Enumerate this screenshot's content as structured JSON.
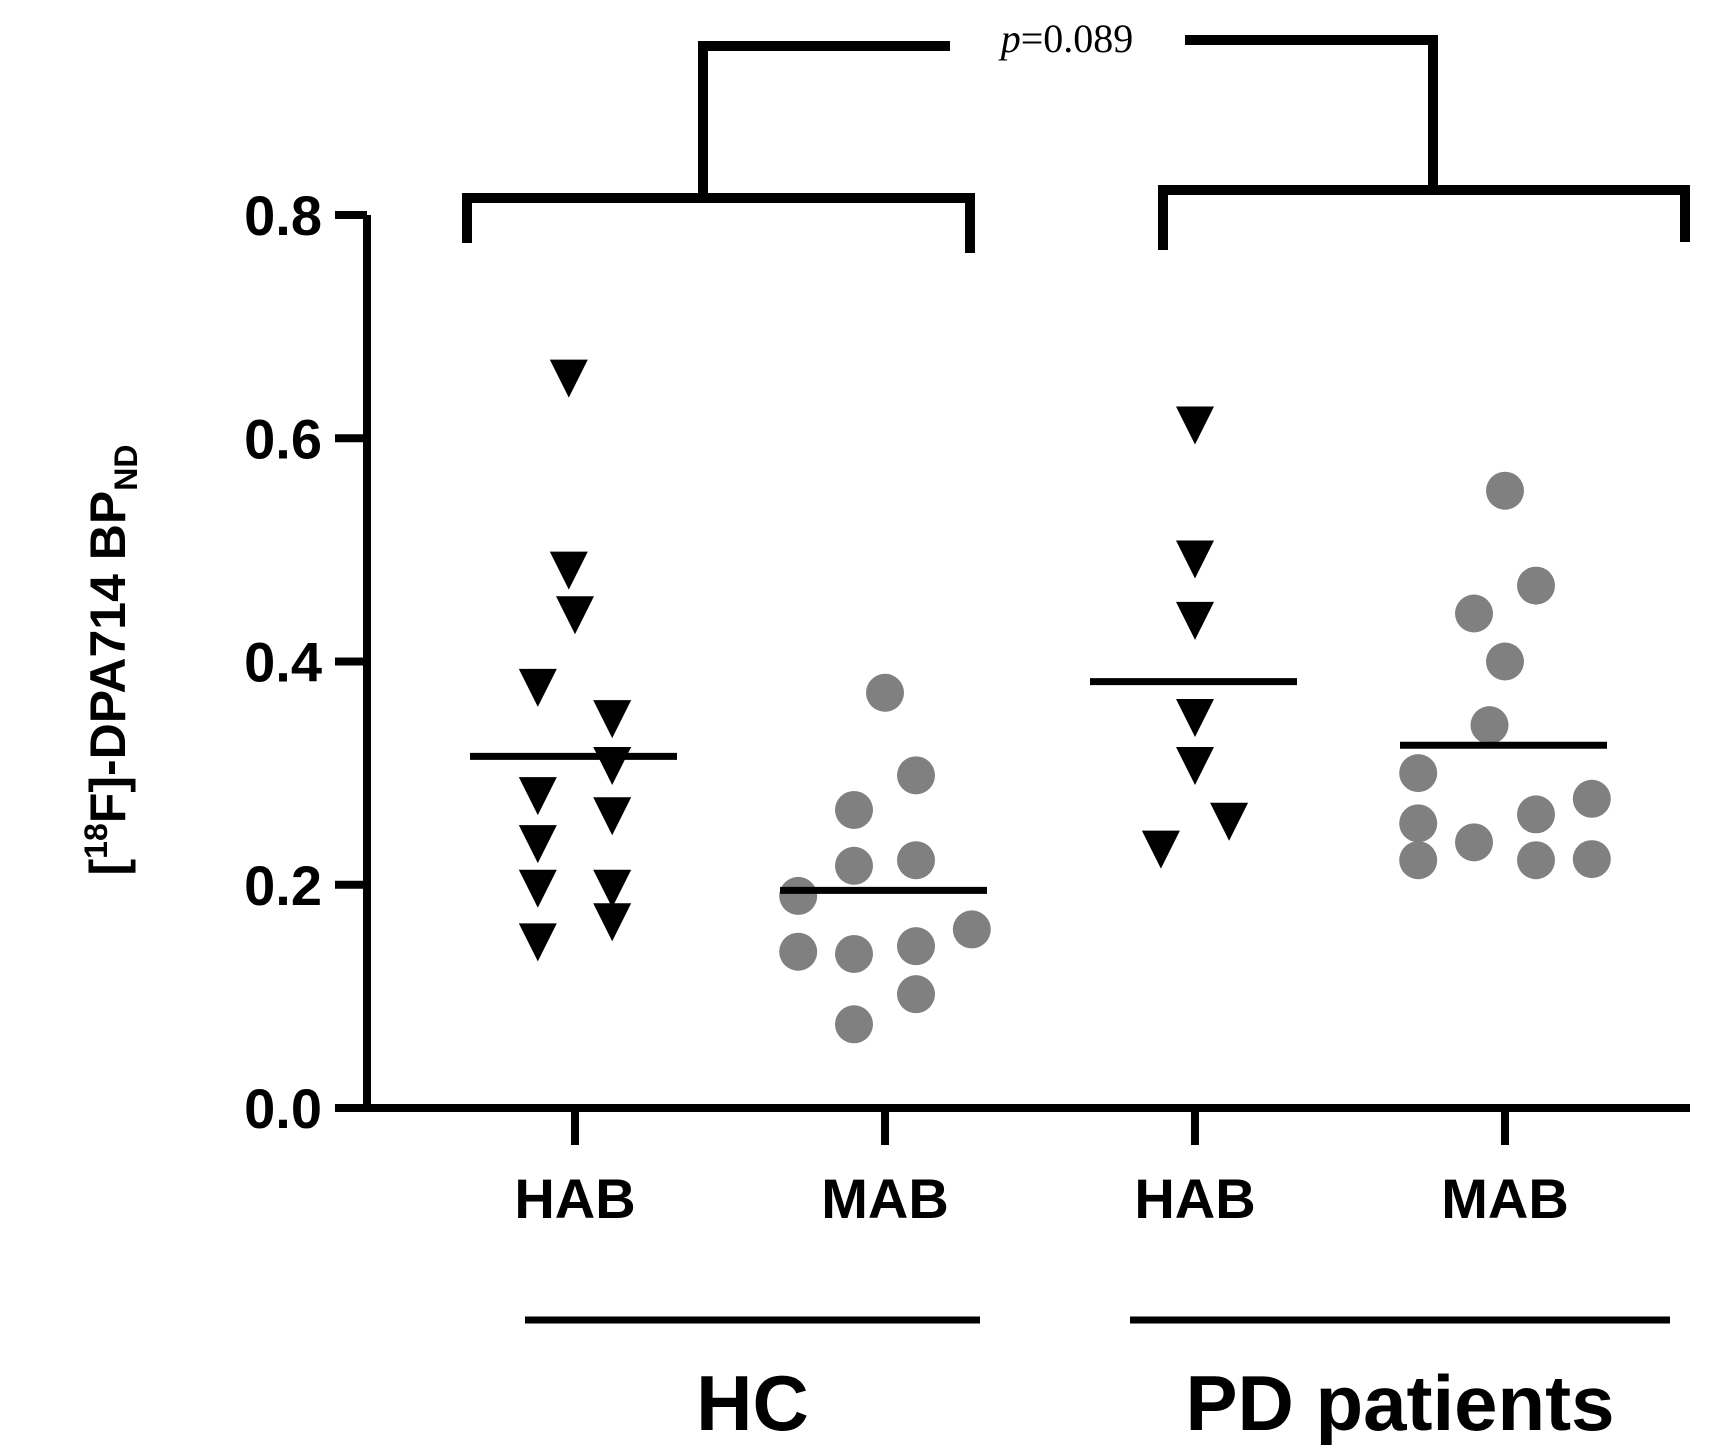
{
  "chart_data": {
    "type": "scatter",
    "ylabel": {
      "pre_sup": "[",
      "sup": "18",
      "main": "F]-DPA714 BP",
      "sub": "ND"
    },
    "ylim": [
      0,
      0.8
    ],
    "yticks": [
      "0.0",
      "0.2",
      "0.4",
      "0.6",
      "0.8"
    ],
    "categories": [
      "HAB",
      "MAB",
      "HAB",
      "MAB"
    ],
    "groups": [
      {
        "label": "HC",
        "categories": [
          0,
          1
        ]
      },
      {
        "label": "PD patients",
        "categories": [
          2,
          3
        ]
      }
    ],
    "annotation": {
      "p_italic": "p",
      "p_rest": "=0.089"
    },
    "series": [
      {
        "category": 0,
        "marker": "triangle-down",
        "color": "#000000",
        "mean": 0.315,
        "points": [
          {
            "x": -0.02,
            "y": 0.657
          },
          {
            "x": -0.02,
            "y": 0.485
          },
          {
            "x": 0.0,
            "y": 0.445
          },
          {
            "x": -0.12,
            "y": 0.38
          },
          {
            "x": 0.12,
            "y": 0.352
          },
          {
            "x": 0.12,
            "y": 0.31
          },
          {
            "x": -0.12,
            "y": 0.283
          },
          {
            "x": 0.12,
            "y": 0.265
          },
          {
            "x": -0.12,
            "y": 0.24
          },
          {
            "x": -0.12,
            "y": 0.2
          },
          {
            "x": 0.12,
            "y": 0.2
          },
          {
            "x": 0.12,
            "y": 0.17
          },
          {
            "x": -0.12,
            "y": 0.152
          }
        ]
      },
      {
        "category": 1,
        "marker": "circle",
        "color": "#808080",
        "mean": 0.195,
        "points": [
          {
            "x": 0.0,
            "y": 0.372
          },
          {
            "x": 0.1,
            "y": 0.298
          },
          {
            "x": -0.1,
            "y": 0.267
          },
          {
            "x": 0.1,
            "y": 0.222
          },
          {
            "x": -0.1,
            "y": 0.217
          },
          {
            "x": -0.28,
            "y": 0.19
          },
          {
            "x": 0.28,
            "y": 0.16
          },
          {
            "x": 0.1,
            "y": 0.145
          },
          {
            "x": -0.28,
            "y": 0.14
          },
          {
            "x": -0.1,
            "y": 0.138
          },
          {
            "x": 0.1,
            "y": 0.102
          },
          {
            "x": -0.1,
            "y": 0.075
          }
        ]
      },
      {
        "category": 2,
        "marker": "triangle-down",
        "color": "#000000",
        "mean": 0.382,
        "points": [
          {
            "x": 0.0,
            "y": 0.615
          },
          {
            "x": 0.0,
            "y": 0.495
          },
          {
            "x": 0.0,
            "y": 0.44
          },
          {
            "x": 0.0,
            "y": 0.353
          },
          {
            "x": 0.0,
            "y": 0.31
          },
          {
            "x": 0.11,
            "y": 0.26
          },
          {
            "x": -0.11,
            "y": 0.235
          }
        ]
      },
      {
        "category": 3,
        "marker": "circle",
        "color": "#808080",
        "mean": 0.325,
        "points": [
          {
            "x": 0.0,
            "y": 0.553
          },
          {
            "x": 0.1,
            "y": 0.468
          },
          {
            "x": -0.1,
            "y": 0.443
          },
          {
            "x": 0.0,
            "y": 0.4
          },
          {
            "x": -0.05,
            "y": 0.343
          },
          {
            "x": -0.28,
            "y": 0.3
          },
          {
            "x": 0.28,
            "y": 0.277
          },
          {
            "x": 0.1,
            "y": 0.263
          },
          {
            "x": -0.28,
            "y": 0.255
          },
          {
            "x": -0.1,
            "y": 0.238
          },
          {
            "x": 0.1,
            "y": 0.222
          },
          {
            "x": -0.28,
            "y": 0.222
          },
          {
            "x": 0.28,
            "y": 0.223
          }
        ]
      }
    ]
  }
}
